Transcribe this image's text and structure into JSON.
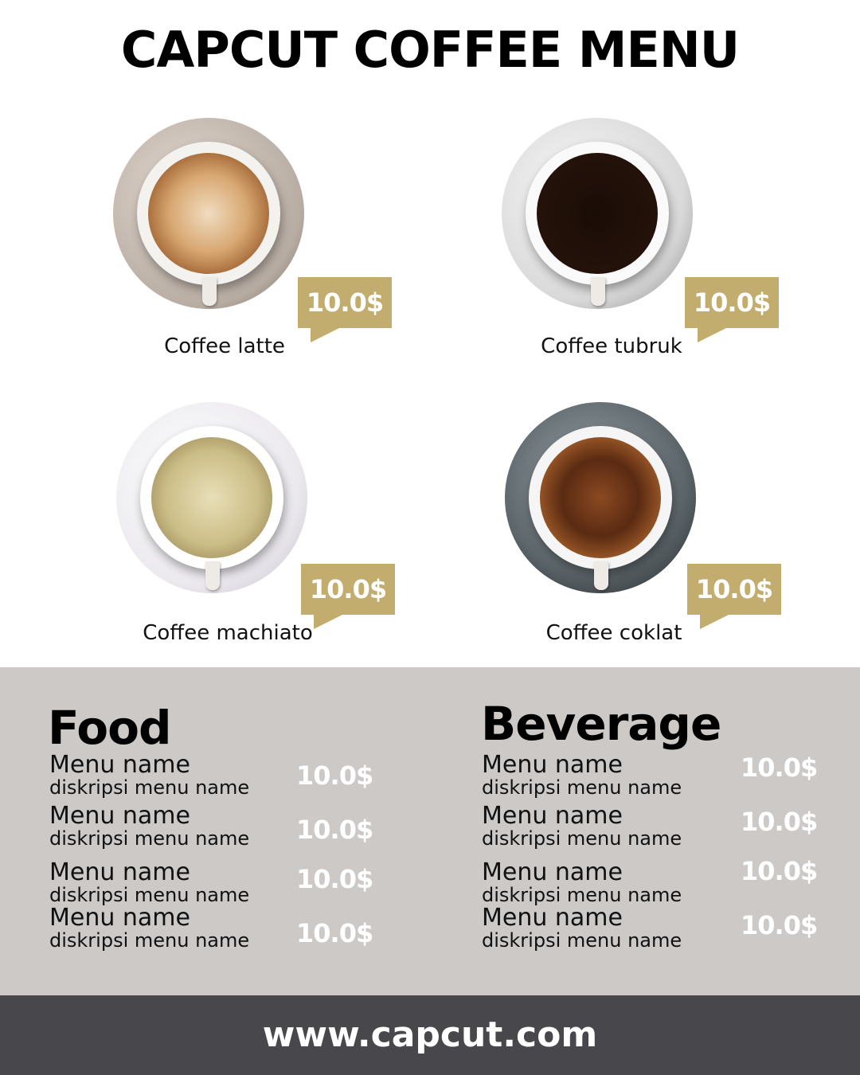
{
  "title": "CAPCUT COFFEE MENU",
  "brand_colors": {
    "tag": "#c2ad6e",
    "band": "#cdc9c6",
    "footer": "#48474c"
  },
  "coffees": [
    {
      "name": "Coffee latte",
      "price": "10.0$"
    },
    {
      "name": "Coffee tubruk",
      "price": "10.0$"
    },
    {
      "name": "Coffee machiato",
      "price": "10.0$"
    },
    {
      "name": "Coffee coklat",
      "price": "10.0$"
    }
  ],
  "food": {
    "heading": "Food",
    "items": [
      {
        "name": "Menu name",
        "desc": "diskripsi menu name",
        "price": "10.0$"
      },
      {
        "name": "Menu name",
        "desc": "diskripsi menu name",
        "price": "10.0$"
      },
      {
        "name": "Menu name",
        "desc": "diskripsi menu name",
        "price": "10.0$"
      },
      {
        "name": "Menu name",
        "desc": "diskripsi menu name",
        "price": "10.0$"
      }
    ]
  },
  "beverage": {
    "heading": "Beverage",
    "items": [
      {
        "name": "Menu name",
        "desc": "diskripsi menu name",
        "price": "10.0$"
      },
      {
        "name": "Menu name",
        "desc": "diskripsi menu name",
        "price": "10.0$"
      },
      {
        "name": "Menu name",
        "desc": "diskripsi menu name",
        "price": "10.0$"
      },
      {
        "name": "Menu name",
        "desc": "diskripsi menu name",
        "price": "10.0$"
      }
    ]
  },
  "footer": "www.capcut.com"
}
